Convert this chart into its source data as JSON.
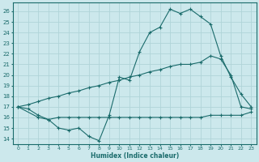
{
  "xlabel": "Humidex (Indice chaleur)",
  "ylabel": "",
  "bg_color": "#cce8ec",
  "line_color": "#1a6b6b",
  "grid_color": "#b0d4d8",
  "xlim": [
    -0.5,
    23.5
  ],
  "ylim": [
    13.5,
    26.8
  ],
  "yticks": [
    14,
    15,
    16,
    17,
    18,
    19,
    20,
    21,
    22,
    23,
    24,
    25,
    26
  ],
  "xticks": [
    0,
    1,
    2,
    3,
    4,
    5,
    6,
    7,
    8,
    9,
    10,
    11,
    12,
    13,
    14,
    15,
    16,
    17,
    18,
    19,
    20,
    21,
    22,
    23
  ],
  "line1_x": [
    0,
    1,
    2,
    3,
    4,
    5,
    6,
    7,
    8,
    9,
    10,
    11,
    12,
    13,
    14,
    15,
    16,
    17,
    18,
    19,
    20,
    21,
    22,
    23
  ],
  "line1_y": [
    17.0,
    16.8,
    16.2,
    15.8,
    15.0,
    14.8,
    15.0,
    14.2,
    13.8,
    16.2,
    19.8,
    19.5,
    22.2,
    24.0,
    24.5,
    26.2,
    25.8,
    26.2,
    25.5,
    24.8,
    21.8,
    19.8,
    18.2,
    17.0
  ],
  "line2_x": [
    0,
    2,
    3,
    4,
    5,
    6,
    7,
    8,
    9,
    10,
    11,
    12,
    13,
    14,
    15,
    16,
    17,
    18,
    19,
    20,
    21,
    22,
    23
  ],
  "line2_y": [
    17.0,
    16.0,
    15.8,
    16.0,
    16.0,
    16.0,
    16.0,
    16.0,
    16.0,
    16.0,
    16.0,
    16.0,
    16.0,
    16.0,
    16.0,
    16.0,
    16.0,
    16.0,
    16.2,
    16.2,
    16.2,
    16.2,
    16.5
  ],
  "line3_x": [
    0,
    1,
    2,
    3,
    4,
    5,
    6,
    7,
    8,
    9,
    10,
    11,
    12,
    13,
    14,
    15,
    16,
    17,
    18,
    19,
    20,
    21,
    22,
    23
  ],
  "line3_y": [
    17.0,
    17.2,
    17.5,
    17.8,
    18.0,
    18.3,
    18.5,
    18.8,
    19.0,
    19.3,
    19.5,
    19.8,
    20.0,
    20.3,
    20.5,
    20.8,
    21.0,
    21.0,
    21.2,
    21.8,
    21.5,
    20.0,
    17.0,
    16.8
  ]
}
